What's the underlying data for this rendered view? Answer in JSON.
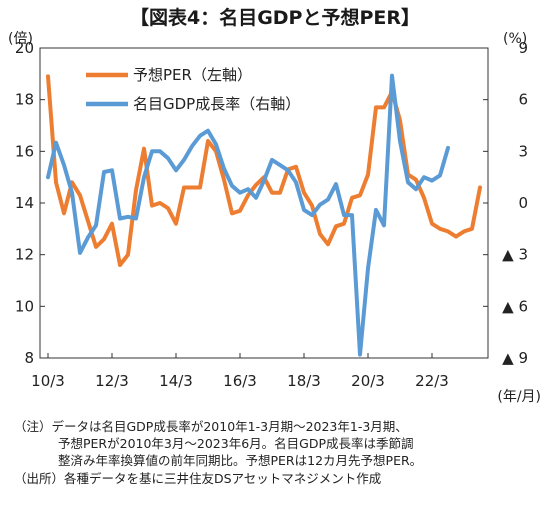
{
  "title": "【図表4：名目GDPと予想PER】",
  "notes": [
    "（注）データは名目GDP成長率が2010年1-3月期～2023年1-3月期、",
    "予想PERが2010年3月～2023年6月。名目GDP成長率は季節調",
    "整済み年率換算値の前年同期比。予想PERは12カ月先予想PER。",
    "（出所）各種データを基に三井住友DSアセットマネジメント作成"
  ],
  "chart_data": {
    "type": "line",
    "x_tick_labels": [
      "10/3",
      "12/3",
      "14/3",
      "16/3",
      "18/3",
      "20/3",
      "22/3"
    ],
    "x_unit": "(年/月)",
    "y_left": {
      "unit": "(倍)",
      "range": [
        8,
        20
      ],
      "tick_labels": [
        "8",
        "10",
        "12",
        "14",
        "16",
        "18",
        "20"
      ]
    },
    "y_right": {
      "unit": "(%)",
      "range": [
        -9,
        9
      ],
      "tick_labels": [
        "9",
        "6",
        "3",
        "0",
        "▲ 3",
        "▲ 6",
        "▲ 9"
      ]
    },
    "grid": false,
    "legend_position": "top-left",
    "series": [
      {
        "name": "予想PER（左軸）",
        "axis": "left",
        "color": "#ED7D31",
        "x_start": "2010-03",
        "step_months": 3,
        "values": [
          18.9,
          14.8,
          13.6,
          14.8,
          14.3,
          13.3,
          12.3,
          12.6,
          13.2,
          11.6,
          12.0,
          14.5,
          16.1,
          13.9,
          14.0,
          13.8,
          13.2,
          14.6,
          14.6,
          14.6,
          16.4,
          16.0,
          14.9,
          13.6,
          13.7,
          14.3,
          14.7,
          15.0,
          14.4,
          14.4,
          15.3,
          15.4,
          14.4,
          13.9,
          12.8,
          12.4,
          13.1,
          13.2,
          14.2,
          14.3,
          15.1,
          17.7,
          17.7,
          18.3,
          17.2,
          15.1,
          14.9,
          14.2,
          13.2,
          13.0,
          12.9,
          12.7,
          12.9,
          13.0,
          14.6
        ]
      },
      {
        "name": "名目GDP成長率（右軸）",
        "axis": "right",
        "color": "#5B9BD5",
        "x_start": "2010-03",
        "step_months": 3,
        "values": [
          1.5,
          3.5,
          2.2,
          0.6,
          -2.9,
          -2.0,
          -1.3,
          1.8,
          1.9,
          -0.9,
          -0.8,
          -0.9,
          1.5,
          3.0,
          3.0,
          2.6,
          1.9,
          2.5,
          3.3,
          3.9,
          4.2,
          3.4,
          2.0,
          1.0,
          0.6,
          0.8,
          0.3,
          1.3,
          2.5,
          2.2,
          1.9,
          1.2,
          -0.4,
          -0.7,
          -0.1,
          0.2,
          1.1,
          -0.7,
          -0.7,
          -8.8,
          -3.8,
          -0.4,
          -1.3,
          7.4,
          3.6,
          1.2,
          0.8,
          1.5,
          1.3,
          1.6,
          3.2
        ]
      }
    ]
  }
}
